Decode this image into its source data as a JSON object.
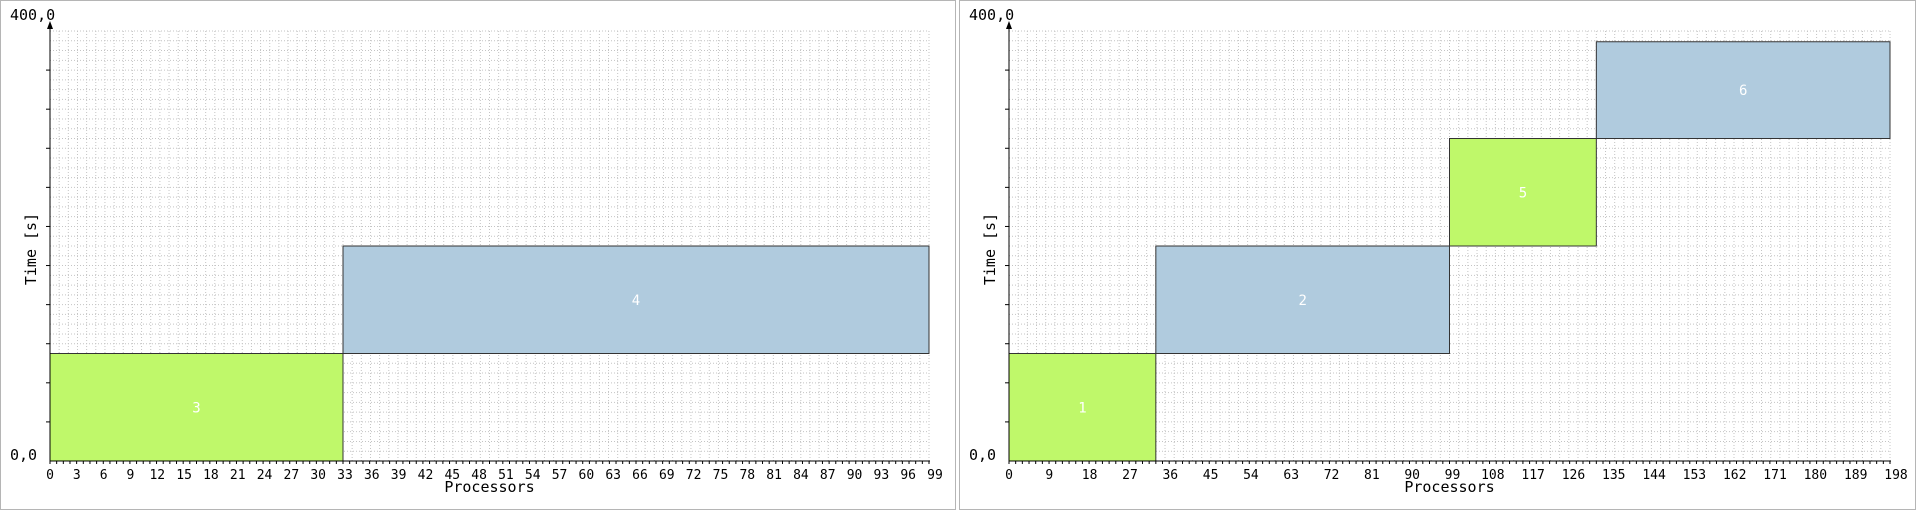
{
  "chart_data": [
    {
      "type": "gantt",
      "xlabel": "Processors",
      "ylabel": "Time [s]",
      "y_top_label": "400,0",
      "y_bottom_label": "0,0",
      "xlim": [
        0,
        99
      ],
      "ylim": [
        0,
        400
      ],
      "x_tick_labels": [
        "0",
        "3",
        "6",
        "9",
        "12",
        "15",
        "18",
        "21",
        "24",
        "27",
        "30",
        "33",
        "36",
        "39",
        "42",
        "45",
        "48",
        "51",
        "54",
        "57",
        "60",
        "63",
        "66",
        "69",
        "72",
        "75",
        "78",
        "81",
        "84",
        "87",
        "90",
        "93",
        "96",
        "99"
      ],
      "grid": true,
      "jobs": [
        {
          "label": "3",
          "proc_start": 0,
          "proc_end": 33,
          "time_start": 0,
          "time_end": 100,
          "color": "#bff86a"
        },
        {
          "label": "4",
          "proc_start": 33,
          "proc_end": 99,
          "time_start": 100,
          "time_end": 200,
          "color": "#b0cbde"
        }
      ]
    },
    {
      "type": "gantt",
      "xlabel": "Processors",
      "ylabel": "Time [s]",
      "y_top_label": "400,0",
      "y_bottom_label": "0,0",
      "xlim": [
        0,
        198
      ],
      "ylim": [
        0,
        400
      ],
      "x_tick_labels": [
        "0",
        "9",
        "18",
        "27",
        "36",
        "45",
        "54",
        "63",
        "72",
        "81",
        "90",
        "99",
        "108",
        "117",
        "126",
        "135",
        "144",
        "153",
        "162",
        "171",
        "180",
        "189",
        "198"
      ],
      "grid": true,
      "jobs": [
        {
          "label": "1",
          "proc_start": 0,
          "proc_end": 33,
          "time_start": 0,
          "time_end": 100,
          "color": "#bff86a"
        },
        {
          "label": "2",
          "proc_start": 33,
          "proc_end": 99,
          "time_start": 100,
          "time_end": 200,
          "color": "#b0cbde"
        },
        {
          "label": "5",
          "proc_start": 99,
          "proc_end": 132,
          "time_start": 200,
          "time_end": 300,
          "color": "#bff86a"
        },
        {
          "label": "6",
          "proc_start": 132,
          "proc_end": 198,
          "time_start": 300,
          "time_end": 390,
          "color": "#b0cbde"
        }
      ]
    }
  ]
}
